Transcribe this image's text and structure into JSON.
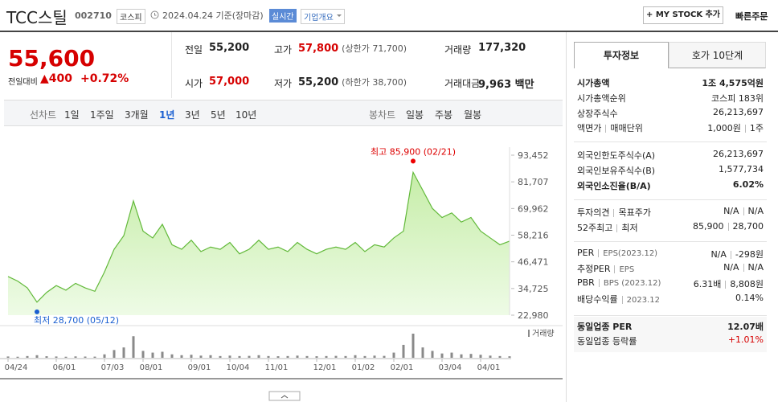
{
  "header": {
    "name": "TCC스틸",
    "code": "002710",
    "market": "코스피",
    "date": "2024.04.24 기준(장마감)",
    "realtime": "실시간",
    "overview": "기업개요",
    "mystock": "+ MY STOCK 추가",
    "quick_order": "빠른주문"
  },
  "price": {
    "now": "55,600",
    "change_label": "전일대비",
    "change": "▲400",
    "rate": "+0.72%"
  },
  "summary": {
    "rows": [
      [
        {
          "label": "전일",
          "value": "55,200"
        },
        {
          "label": "고가",
          "value": "57,800",
          "note": "(상한가 71,700)"
        },
        {
          "label": "거래량",
          "value": "177,320"
        }
      ],
      [
        {
          "label": "시가",
          "value": "57,000"
        },
        {
          "label": "저가",
          "value": "55,200",
          "note": "(하한가 38,700)"
        },
        {
          "label": "거래대금",
          "value": "9,963 백만"
        }
      ]
    ]
  },
  "tabs": {
    "line_title": "선차트",
    "line": [
      "1일",
      "1주일",
      "3개월",
      "1년",
      "3년",
      "5년",
      "10년"
    ],
    "candle_title": "봉차트",
    "candle": [
      "일봉",
      "주봉",
      "월봉"
    ]
  },
  "chart_data": {
    "type": "area",
    "color": "#62b93a",
    "grid": false,
    "categories": [
      "04/24",
      null,
      null,
      null,
      null,
      "06/01",
      null,
      null,
      null,
      null,
      "07/03",
      null,
      null,
      null,
      "08/01",
      null,
      null,
      null,
      null,
      "09/01",
      null,
      null,
      null,
      "10/04",
      null,
      null,
      null,
      "11/01",
      null,
      null,
      null,
      null,
      "12/01",
      null,
      null,
      null,
      "01/02",
      null,
      null,
      null,
      "02/01",
      null,
      null,
      null,
      null,
      "03/04",
      null,
      null,
      null,
      "04/01",
      null,
      null,
      null
    ],
    "values": [
      40000,
      38000,
      35000,
      28700,
      33000,
      36000,
      34000,
      37000,
      35000,
      33500,
      42000,
      52000,
      58000,
      73300,
      60000,
      57000,
      63000,
      54000,
      52000,
      56000,
      51000,
      53000,
      52000,
      55000,
      50000,
      52000,
      56000,
      52000,
      53000,
      51000,
      55000,
      52000,
      50000,
      52000,
      53000,
      52000,
      55000,
      51000,
      54000,
      53000,
      57000,
      60000,
      85900,
      78000,
      70000,
      66000,
      68000,
      64000,
      66000,
      60000,
      57000,
      54000,
      55600
    ],
    "ylim": [
      22980,
      93452
    ],
    "yticks": [
      {
        "value": 22980,
        "label": "22,980"
      },
      {
        "value": 34725,
        "label": "34,725"
      },
      {
        "value": 46471,
        "label": "46,471"
      },
      {
        "value": 58216,
        "label": "58,216"
      },
      {
        "value": 69962,
        "label": "69,962"
      },
      {
        "value": 81707,
        "label": "81,707"
      },
      {
        "value": 93452,
        "label": "93,452"
      }
    ],
    "high_label": "최고 85,900 (02/21)",
    "low_label": "최저 28,700 (05/12)",
    "volume": {
      "name": "거래량",
      "color": "#8a8a8a",
      "values": [
        150000,
        120000,
        200000,
        300000,
        180000,
        150000,
        120000,
        160000,
        140000,
        130000,
        400000,
        900000,
        1200000,
        2500000,
        800000,
        600000,
        700000,
        400000,
        300000,
        350000,
        250000,
        300000,
        200000,
        250000,
        200000,
        220000,
        300000,
        200000,
        180000,
        200000,
        250000,
        200000,
        180000,
        200000,
        220000,
        200000,
        300000,
        200000,
        250000,
        220000,
        600000,
        1500000,
        2800000,
        1200000,
        800000,
        500000,
        600000,
        400000,
        450000,
        350000,
        250000,
        200000,
        177320
      ]
    }
  },
  "info": {
    "tabs": [
      "투자정보",
      "호가 10단계"
    ],
    "groups": [
      [
        {
          "labels": [
            "시가총액"
          ],
          "values": [
            "1조 4,575억원"
          ]
        },
        {
          "labels": [
            "시가총액순위"
          ],
          "values": [
            "코스피 183위"
          ]
        },
        {
          "labels": [
            "상장주식수"
          ],
          "values": [
            "26,213,697"
          ]
        },
        {
          "labels": [
            "액면가",
            "매매단위"
          ],
          "values": [
            "1,000원",
            "1주"
          ]
        }
      ],
      [
        {
          "labels": [
            "외국인한도주식수(A)"
          ],
          "values": [
            "26,213,697"
          ]
        },
        {
          "labels": [
            "외국인보유주식수(B)"
          ],
          "values": [
            "1,577,734"
          ]
        },
        {
          "labels": [
            "외국인소진율(B/A)"
          ],
          "values": [
            "6.02%"
          ]
        }
      ],
      [
        {
          "labels": [
            "투자의견",
            "목표주가"
          ],
          "values": [
            "N/A",
            "N/A"
          ]
        },
        {
          "labels": [
            "52주최고",
            "최저"
          ],
          "values": [
            "85,900",
            "28,700"
          ]
        }
      ],
      [
        {
          "labels": [
            "PER",
            "EPS(2023.12)"
          ],
          "values": [
            "N/A",
            "-298원"
          ]
        },
        {
          "labels": [
            "추정PER",
            "EPS"
          ],
          "values": [
            "N/A",
            "N/A"
          ]
        },
        {
          "labels": [
            "PBR",
            "BPS (2023.12)"
          ],
          "values": [
            "6.31배",
            "8,808원"
          ]
        },
        {
          "labels": [
            "배당수익률",
            "2023.12"
          ],
          "values": [
            "0.14%"
          ]
        }
      ],
      [
        {
          "labels": [
            "동일업종 PER"
          ],
          "values": [
            "12.07배"
          ]
        },
        {
          "labels": [
            "동일업종 등락률"
          ],
          "values": [
            "+1.01%"
          ]
        }
      ]
    ]
  }
}
